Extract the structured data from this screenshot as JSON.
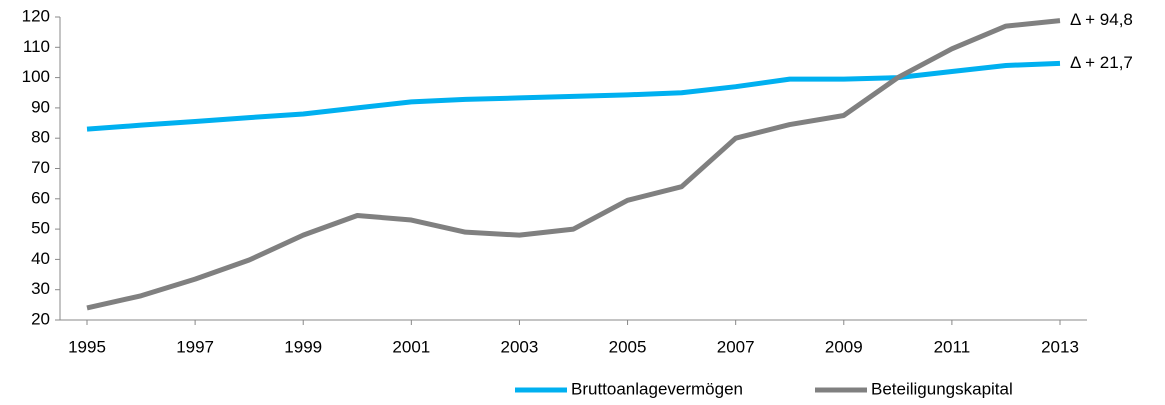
{
  "chart_data": {
    "type": "line",
    "x": [
      1995,
      1996,
      1997,
      1998,
      1999,
      2000,
      2001,
      2002,
      2003,
      2004,
      2005,
      2006,
      2007,
      2008,
      2009,
      2010,
      2011,
      2012,
      2013
    ],
    "xlim": [
      1995,
      2013
    ],
    "xticks": [
      1995,
      1997,
      1999,
      2001,
      2003,
      2005,
      2007,
      2009,
      2011,
      2013
    ],
    "ylim": [
      20,
      120
    ],
    "yticks": [
      20,
      30,
      40,
      50,
      60,
      70,
      80,
      90,
      100,
      110,
      120
    ],
    "grid": false,
    "legend": "bottom",
    "series": [
      {
        "name": "Bruttoanlagevermögen",
        "color": "#00b0f0",
        "end_label": "Δ + 21,7",
        "values": [
          83,
          84.3,
          85.5,
          86.8,
          88,
          90,
          92,
          92.8,
          93.3,
          93.8,
          94.3,
          95,
          97,
          99.5,
          99.5,
          100,
          102,
          104,
          104.7
        ]
      },
      {
        "name": "Beteiligungskapital",
        "color": "#808080",
        "end_label": "Δ + 94,8",
        "values": [
          24,
          28,
          33.5,
          39.8,
          48,
          54.5,
          53,
          49,
          48,
          50,
          59.5,
          64,
          80,
          84.5,
          87.5,
          100,
          109.5,
          117,
          118.8
        ]
      }
    ]
  }
}
